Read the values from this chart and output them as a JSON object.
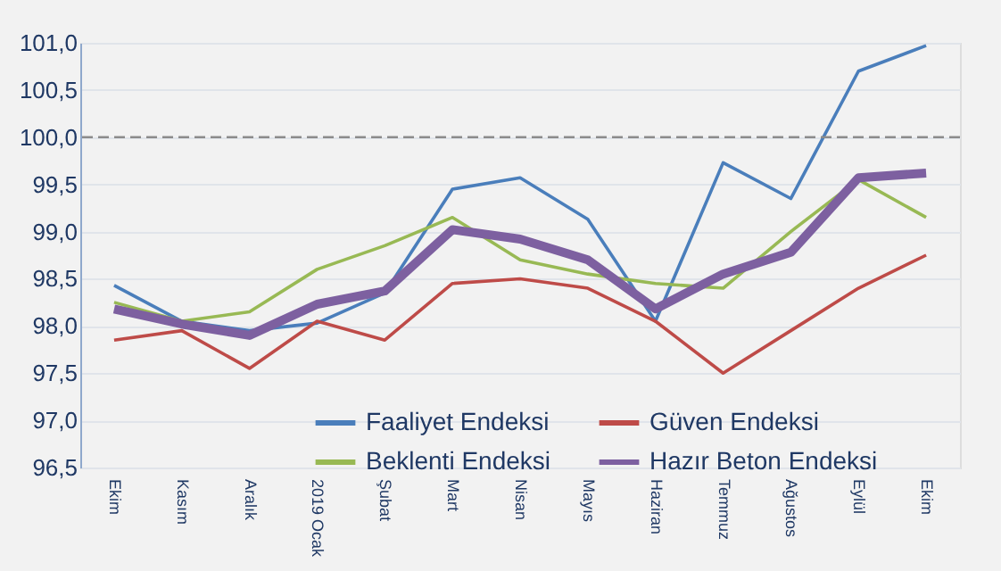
{
  "chart_data": {
    "type": "line",
    "categories": [
      "Ekim",
      "Kasım",
      "Aralık",
      "2019 Ocak",
      "Şubat",
      "Mart",
      "Nisan",
      "Mayıs",
      "Haziran",
      "Temmuz",
      "Ağustos",
      "Eylül",
      "Ekim"
    ],
    "series": [
      {
        "name": "Faaliyet Endeksi",
        "color": "#4a7ebb",
        "values": [
          98.43,
          98.05,
          97.95,
          98.03,
          98.35,
          99.45,
          99.57,
          99.13,
          98.05,
          99.73,
          99.35,
          100.7,
          100.97
        ]
      },
      {
        "name": "Güven Endeksi",
        "color": "#be4b48",
        "values": [
          97.85,
          97.95,
          97.55,
          98.05,
          97.85,
          98.45,
          98.5,
          98.4,
          98.05,
          97.5,
          97.95,
          98.4,
          98.75
        ]
      },
      {
        "name": "Beklenti Endeksi",
        "color": "#98b954",
        "values": [
          98.25,
          98.05,
          98.15,
          98.6,
          98.85,
          99.15,
          98.7,
          98.55,
          98.45,
          98.4,
          99.0,
          99.55,
          99.15
        ]
      },
      {
        "name": "Hazır Beton Endeksi",
        "color": "#7d60a0",
        "values": [
          98.18,
          98.02,
          97.9,
          98.23,
          98.37,
          99.02,
          98.92,
          98.7,
          98.18,
          98.55,
          98.78,
          99.57,
          99.62
        ]
      }
    ],
    "ylim": [
      96.5,
      101.0
    ],
    "yticks": [
      {
        "value": 96.5,
        "label": "96,5"
      },
      {
        "value": 97.0,
        "label": "97,0"
      },
      {
        "value": 97.5,
        "label": "97,5"
      },
      {
        "value": 98.0,
        "label": "98,0"
      },
      {
        "value": 98.5,
        "label": "98,5"
      },
      {
        "value": 99.0,
        "label": "99,0"
      },
      {
        "value": 99.5,
        "label": "99,5"
      },
      {
        "value": 100.0,
        "label": "100,0"
      },
      {
        "value": 100.5,
        "label": "100,5"
      },
      {
        "value": 101.0,
        "label": "101,0"
      }
    ],
    "ref_lines": [
      {
        "axis": "y",
        "value": 100.0,
        "color": "#8c8c8c",
        "line_style": "dashed"
      }
    ],
    "grid": "y",
    "legend": "bottom",
    "marker": "none",
    "line_style": "solid"
  }
}
